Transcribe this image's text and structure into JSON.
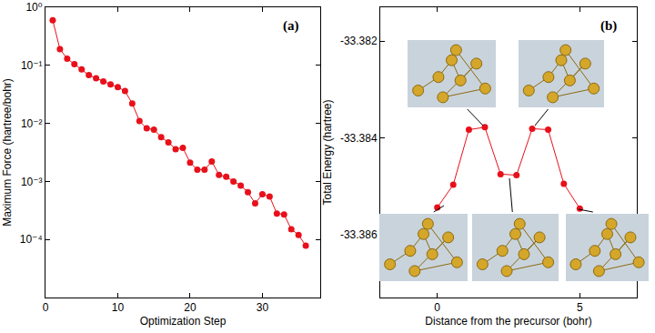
{
  "chart_data": [
    {
      "type": "line",
      "annotation": "(a)",
      "color": "#e8101a",
      "marker": "circle",
      "log": "y",
      "grid": false,
      "x_label": "Optimization Step",
      "y_label": "Maximum Force (hartree/bohr)",
      "x": [
        1,
        2,
        3,
        4,
        5,
        6,
        7,
        8,
        9,
        10,
        11,
        12,
        13,
        14,
        15,
        16,
        17,
        18,
        19,
        20,
        21,
        22,
        23,
        24,
        25,
        26,
        27,
        28,
        29,
        30,
        31,
        32,
        33,
        34,
        35,
        36
      ],
      "values": [
        0.6,
        0.19,
        0.13,
        0.105,
        0.085,
        0.068,
        0.06,
        0.053,
        0.047,
        0.042,
        0.036,
        0.022,
        0.011,
        0.0082,
        0.0078,
        0.0058,
        0.0047,
        0.0036,
        0.0038,
        0.0021,
        0.0016,
        0.0016,
        0.0022,
        0.0013,
        0.0012,
        0.001,
        0.00085,
        0.00065,
        0.00042,
        0.0006,
        0.00055,
        0.00028,
        0.00027,
        0.00015,
        0.00012,
        7.8e-05
      ],
      "xlim": [
        0,
        38
      ],
      "xticks": [
        0,
        10,
        20,
        30
      ],
      "ylim": [
        1e-05,
        1
      ],
      "yticks": [
        {
          "value": 0.0001,
          "label": "10⁻⁴"
        },
        {
          "value": 0.001,
          "label": "10⁻³"
        },
        {
          "value": 0.01,
          "label": "10⁻²"
        },
        {
          "value": 0.1,
          "label": "10⁻¹"
        },
        {
          "value": 1,
          "label": "10⁰"
        }
      ]
    },
    {
      "type": "line",
      "annotation": "(b)",
      "color": "#e8101a",
      "marker": "circle",
      "grid": false,
      "x_label": "Distance from the precursor (bohr)",
      "y_label": "Total Energy (hartree)",
      "x": [
        0,
        0.56,
        1.11,
        1.67,
        2.22,
        2.78,
        3.33,
        3.89,
        4.44,
        5.0
      ],
      "values": [
        -33.38544,
        -33.38497,
        -33.38383,
        -33.38378,
        -33.38475,
        -33.38477,
        -33.38381,
        -33.38383,
        -33.38495,
        -33.38546
      ],
      "xlim": [
        -2,
        7
      ],
      "xticks": [
        0,
        5
      ],
      "ylim": [
        -33.3873,
        -33.3813
      ],
      "yticks": [
        -33.386,
        -33.384,
        -33.382
      ]
    }
  ]
}
